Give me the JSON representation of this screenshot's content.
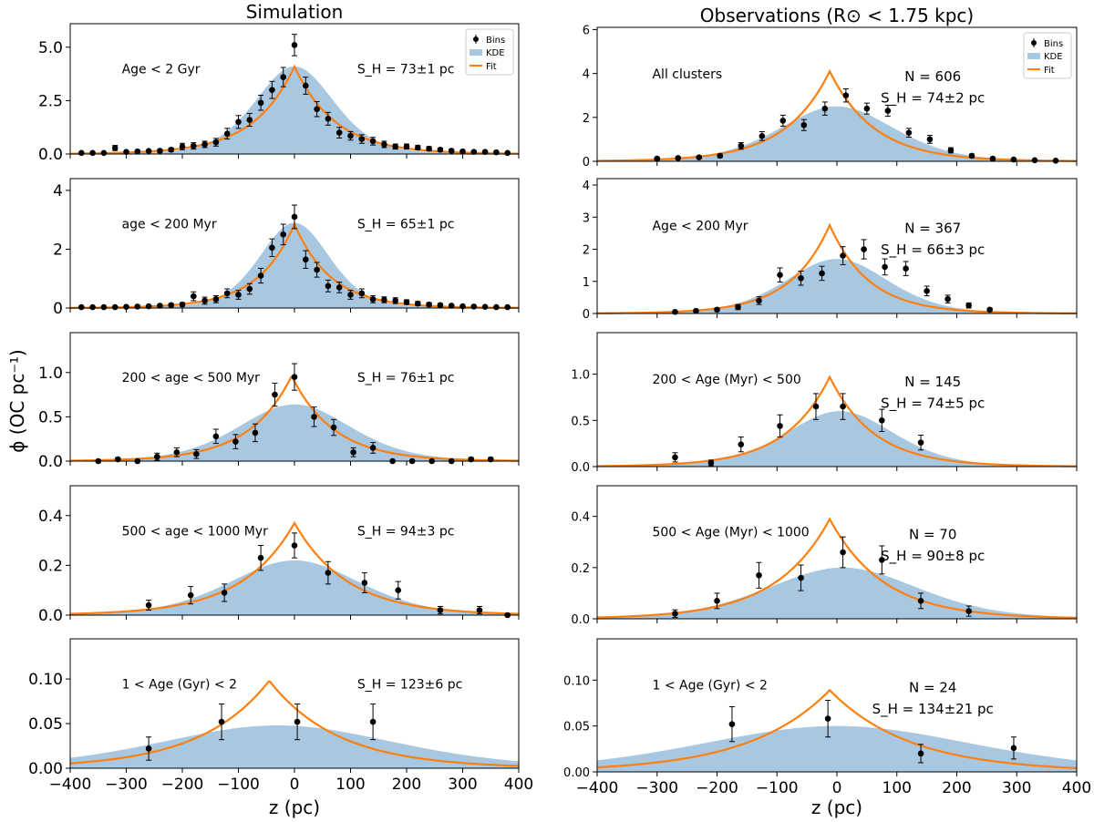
{
  "figure": {
    "col_titles": [
      "Simulation",
      "Observations (R⊙ < 1.75 kpc)"
    ],
    "ylabel": "ϕ (OC pc⁻¹)",
    "xlabel": "z (pc)",
    "legend": [
      "Bins",
      "KDE",
      "Fit"
    ],
    "xticks": [
      "−400",
      "−300",
      "−200",
      "−100",
      "0",
      "100",
      "200",
      "300",
      "400"
    ]
  },
  "colors": {
    "kde": "#a8c8e1",
    "fit": "#ff7f0e",
    "bins": "#000000"
  },
  "chart_data": [
    {
      "type": "line",
      "panel": "sim-1",
      "label": "Age < 2 Gyr",
      "stat": "S_H = 73±1 pc",
      "n": "",
      "xlim": [
        -400,
        400
      ],
      "ylim": [
        0,
        6.1
      ],
      "yticks": [
        0,
        2.5,
        5.0
      ],
      "ytick_labels": [
        "0.0",
        "2.5",
        "5.0"
      ],
      "fit": {
        "peak": 4.1,
        "center": 0,
        "scale": 73
      },
      "kde": {
        "peak": 4.1,
        "center": 0,
        "scale": 70,
        "bumps": []
      },
      "bins": {
        "x": [
          -380,
          -360,
          -340,
          -320,
          -300,
          -280,
          -260,
          -240,
          -220,
          -200,
          -180,
          -160,
          -140,
          -120,
          -100,
          -80,
          -60,
          -40,
          -20,
          0,
          20,
          40,
          60,
          80,
          100,
          120,
          140,
          160,
          180,
          200,
          220,
          240,
          260,
          280,
          300,
          320,
          340,
          360,
          380
        ],
        "y": [
          0.05,
          0.05,
          0.05,
          0.28,
          0.1,
          0.12,
          0.14,
          0.15,
          0.2,
          0.35,
          0.38,
          0.45,
          0.55,
          0.95,
          1.5,
          1.6,
          2.4,
          3.0,
          3.6,
          5.1,
          3.2,
          2.1,
          1.65,
          1.0,
          0.85,
          0.7,
          0.6,
          0.45,
          0.35,
          0.35,
          0.3,
          0.25,
          0.2,
          0.15,
          0.12,
          0.1,
          0.1,
          0.08,
          0.05
        ],
        "err": [
          0.02,
          0.02,
          0.02,
          0.12,
          0.05,
          0.05,
          0.05,
          0.06,
          0.08,
          0.15,
          0.15,
          0.15,
          0.18,
          0.25,
          0.3,
          0.3,
          0.35,
          0.4,
          0.45,
          0.5,
          0.4,
          0.35,
          0.3,
          0.25,
          0.2,
          0.2,
          0.18,
          0.15,
          0.12,
          0.12,
          0.1,
          0.1,
          0.08,
          0.07,
          0.06,
          0.05,
          0.05,
          0.04,
          0.03
        ]
      }
    },
    {
      "type": "line",
      "panel": "obs-1",
      "label": "All clusters",
      "stat": "S_H = 74±2 pc",
      "n": "N = 606",
      "xlim": [
        -400,
        400
      ],
      "ylim": [
        0,
        6.1
      ],
      "yticks": [
        0,
        2,
        4,
        6
      ],
      "ytick_labels": [
        "0",
        "2",
        "4",
        "6"
      ],
      "fit": {
        "peak": 4.1,
        "center": -12,
        "scale": 74
      },
      "kde": {
        "peak": 2.5,
        "center": 0,
        "scale": 95,
        "bumps": []
      },
      "bins": {
        "x": [
          -300,
          -265,
          -230,
          -195,
          -160,
          -125,
          -90,
          -55,
          -20,
          15,
          50,
          85,
          120,
          155,
          190,
          225,
          260,
          295,
          330,
          365
        ],
        "y": [
          0.12,
          0.15,
          0.18,
          0.25,
          0.7,
          1.15,
          1.85,
          1.65,
          2.4,
          3.0,
          2.4,
          2.3,
          1.3,
          1.0,
          0.5,
          0.25,
          0.12,
          0.08,
          0.05,
          0.03
        ],
        "err": [
          0.05,
          0.05,
          0.06,
          0.08,
          0.15,
          0.2,
          0.25,
          0.25,
          0.3,
          0.3,
          0.25,
          0.25,
          0.2,
          0.18,
          0.12,
          0.08,
          0.05,
          0.04,
          0.03,
          0.02
        ]
      }
    },
    {
      "type": "line",
      "panel": "sim-2",
      "label": "age < 200 Myr",
      "stat": "S_H = 65±1 pc",
      "n": "",
      "xlim": [
        -400,
        400
      ],
      "ylim": [
        0,
        4.4
      ],
      "yticks": [
        0,
        2,
        4
      ],
      "ytick_labels": [
        "0",
        "2",
        "4"
      ],
      "fit": {
        "peak": 2.85,
        "center": 0,
        "scale": 65
      },
      "kde": {
        "peak": 2.9,
        "center": 0,
        "scale": 62,
        "bumps": []
      },
      "bins": {
        "x": [
          -380,
          -360,
          -340,
          -320,
          -300,
          -280,
          -260,
          -240,
          -220,
          -200,
          -180,
          -160,
          -140,
          -120,
          -100,
          -80,
          -60,
          -40,
          -20,
          0,
          20,
          40,
          60,
          80,
          100,
          120,
          140,
          160,
          180,
          200,
          220,
          240,
          260,
          280,
          300,
          320,
          340,
          360,
          380
        ],
        "y": [
          0.03,
          0.03,
          0.03,
          0.03,
          0.04,
          0.05,
          0.06,
          0.08,
          0.1,
          0.12,
          0.4,
          0.25,
          0.3,
          0.5,
          0.45,
          0.65,
          1.1,
          2.05,
          2.5,
          3.1,
          1.65,
          1.3,
          0.75,
          0.7,
          0.45,
          0.5,
          0.3,
          0.28,
          0.25,
          0.2,
          0.15,
          0.12,
          0.1,
          0.08,
          0.06,
          0.05,
          0.04,
          0.03,
          0.03
        ],
        "err": [
          0.02,
          0.02,
          0.02,
          0.02,
          0.02,
          0.03,
          0.03,
          0.04,
          0.05,
          0.06,
          0.15,
          0.12,
          0.12,
          0.15,
          0.15,
          0.18,
          0.25,
          0.3,
          0.35,
          0.4,
          0.3,
          0.25,
          0.2,
          0.18,
          0.15,
          0.15,
          0.12,
          0.1,
          0.1,
          0.08,
          0.07,
          0.06,
          0.05,
          0.04,
          0.03,
          0.03,
          0.02,
          0.02,
          0.02
        ]
      }
    },
    {
      "type": "line",
      "panel": "obs-2",
      "label": "Age < 200 Myr",
      "stat": "S_H = 66±3 pc",
      "n": "N = 367",
      "xlim": [
        -400,
        400
      ],
      "ylim": [
        0,
        4.2
      ],
      "yticks": [
        0,
        1,
        2,
        3,
        4
      ],
      "ytick_labels": [
        "0",
        "1",
        "2",
        "3",
        "4"
      ],
      "fit": {
        "peak": 2.75,
        "center": -12,
        "scale": 66
      },
      "kde": {
        "peak": 1.7,
        "center": 0,
        "scale": 85,
        "bumps": []
      },
      "bins": {
        "x": [
          -270,
          -235,
          -200,
          -165,
          -130,
          -95,
          -60,
          -25,
          10,
          45,
          80,
          115,
          150,
          185,
          220,
          255
        ],
        "y": [
          0.05,
          0.08,
          0.12,
          0.2,
          0.4,
          1.2,
          1.1,
          1.25,
          1.8,
          2.0,
          1.45,
          1.4,
          0.7,
          0.45,
          0.25,
          0.12
        ],
        "err": [
          0.03,
          0.04,
          0.05,
          0.08,
          0.12,
          0.22,
          0.22,
          0.22,
          0.28,
          0.3,
          0.25,
          0.22,
          0.15,
          0.12,
          0.08,
          0.05
        ]
      }
    },
    {
      "type": "line",
      "panel": "sim-3",
      "label": "200 < age < 500 Myr",
      "stat": "S_H = 76±1 pc",
      "n": "",
      "xlim": [
        -400,
        400
      ],
      "ylim": [
        0,
        1.45
      ],
      "yticks": [
        0,
        0.5,
        1.0
      ],
      "ytick_labels": [
        "0.0",
        "0.5",
        "1.0"
      ],
      "fit": {
        "peak": 0.96,
        "center": -5,
        "scale": 76
      },
      "kde": {
        "peak": 0.64,
        "center": 0,
        "scale": 100,
        "bumps": []
      },
      "bins": {
        "x": [
          -350,
          -315,
          -280,
          -245,
          -210,
          -175,
          -140,
          -105,
          -70,
          -35,
          0,
          35,
          70,
          105,
          140,
          175,
          210,
          245,
          280,
          315,
          350
        ],
        "y": [
          0.0,
          0.02,
          0.0,
          0.05,
          0.1,
          0.08,
          0.28,
          0.22,
          0.32,
          0.75,
          0.95,
          0.5,
          0.38,
          0.1,
          0.15,
          0.0,
          0.0,
          0.0,
          0.0,
          0.02,
          0.02
        ],
        "err": [
          0.01,
          0.02,
          0.01,
          0.04,
          0.05,
          0.05,
          0.08,
          0.08,
          0.1,
          0.13,
          0.15,
          0.11,
          0.09,
          0.05,
          0.06,
          0.01,
          0.01,
          0.01,
          0.01,
          0.02,
          0.02
        ]
      }
    },
    {
      "type": "line",
      "panel": "obs-3",
      "label": "200 < Age (Myr) < 500",
      "stat": "S_H = 74±5 pc",
      "n": "N = 145",
      "xlim": [
        -400,
        400
      ],
      "ylim": [
        0,
        1.45
      ],
      "yticks": [
        0,
        0.5,
        1.0
      ],
      "ytick_labels": [
        "0.0",
        "0.5",
        "1.0"
      ],
      "fit": {
        "peak": 0.97,
        "center": -12,
        "scale": 74
      },
      "kde": {
        "peak": 0.6,
        "center": 5,
        "scale": 90,
        "bumps": []
      },
      "bins": {
        "x": [
          -270,
          -210,
          -160,
          -95,
          -35,
          10,
          75,
          140
        ],
        "y": [
          0.1,
          0.04,
          0.24,
          0.44,
          0.65,
          0.65,
          0.5,
          0.26
        ],
        "err": [
          0.05,
          0.03,
          0.08,
          0.12,
          0.14,
          0.14,
          0.12,
          0.08
        ]
      }
    },
    {
      "type": "line",
      "panel": "sim-4",
      "label": "500 < age < 1000 Myr",
      "stat": "S_H = 94±3 pc",
      "n": "",
      "xlim": [
        -400,
        400
      ],
      "ylim": [
        0,
        0.52
      ],
      "yticks": [
        0,
        0.2,
        0.4
      ],
      "ytick_labels": [
        "0.0",
        "0.2",
        "0.4"
      ],
      "fit": {
        "peak": 0.37,
        "center": 0,
        "scale": 94
      },
      "kde": {
        "peak": 0.22,
        "center": 0,
        "scale": 115,
        "bumps": []
      },
      "bins": {
        "x": [
          -260,
          -185,
          -125,
          -60,
          0,
          60,
          125,
          185,
          260,
          330,
          380
        ],
        "y": [
          0.04,
          0.08,
          0.09,
          0.23,
          0.28,
          0.17,
          0.13,
          0.1,
          0.02,
          0.02,
          0.0
        ],
        "err": [
          0.02,
          0.035,
          0.035,
          0.05,
          0.05,
          0.045,
          0.04,
          0.035,
          0.015,
          0.015,
          0.005
        ]
      }
    },
    {
      "type": "line",
      "panel": "obs-4",
      "label": "500 < Age (Myr) < 1000",
      "stat": "S_H = 90±8 pc",
      "n": "N = 70",
      "xlim": [
        -400,
        400
      ],
      "ylim": [
        0,
        0.52
      ],
      "yticks": [
        0,
        0.2,
        0.4
      ],
      "ytick_labels": [
        "0.0",
        "0.2",
        "0.4"
      ],
      "fit": {
        "peak": 0.39,
        "center": -12,
        "scale": 90
      },
      "kde": {
        "peak": 0.2,
        "center": 10,
        "scale": 125,
        "bumps": []
      },
      "bins": {
        "x": [
          -270,
          -200,
          -130,
          -60,
          10,
          75,
          140,
          220
        ],
        "y": [
          0.02,
          0.07,
          0.17,
          0.16,
          0.26,
          0.23,
          0.07,
          0.03
        ],
        "err": [
          0.015,
          0.03,
          0.05,
          0.05,
          0.06,
          0.055,
          0.03,
          0.02
        ]
      }
    },
    {
      "type": "line",
      "panel": "sim-5",
      "label": "1 < Age (Gyr) < 2",
      "stat": "S_H = 123±6 pc",
      "n": "",
      "xlim": [
        -400,
        400
      ],
      "ylim": [
        0,
        0.145
      ],
      "yticks": [
        0,
        0.05,
        0.1
      ],
      "ytick_labels": [
        "0.00",
        "0.05",
        "0.10"
      ],
      "fit": {
        "peak": 0.098,
        "center": -45,
        "scale": 123
      },
      "kde": {
        "peak": 0.048,
        "center": -30,
        "scale": 210,
        "bumps": []
      },
      "bins": {
        "x": [
          -260,
          -130,
          5,
          140
        ],
        "y": [
          0.022,
          0.052,
          0.052,
          0.052
        ],
        "err": [
          0.013,
          0.02,
          0.02,
          0.02
        ]
      }
    },
    {
      "type": "line",
      "panel": "obs-5",
      "label": "1 < Age (Gyr) < 2",
      "stat": "S_H = 134±21 pc",
      "n": "N = 24",
      "xlim": [
        -400,
        400
      ],
      "ylim": [
        0,
        0.145
      ],
      "yticks": [
        0,
        0.05,
        0.1
      ],
      "ytick_labels": [
        "0.00",
        "0.05",
        "0.10"
      ],
      "fit": {
        "peak": 0.089,
        "center": -12,
        "scale": 134
      },
      "kde": {
        "peak": 0.05,
        "center": 0,
        "scale": 230,
        "bumps": []
      },
      "bins": {
        "x": [
          -175,
          -15,
          140,
          295
        ],
        "y": [
          0.052,
          0.058,
          0.02,
          0.026
        ],
        "err": [
          0.019,
          0.02,
          0.01,
          0.012
        ]
      }
    }
  ]
}
